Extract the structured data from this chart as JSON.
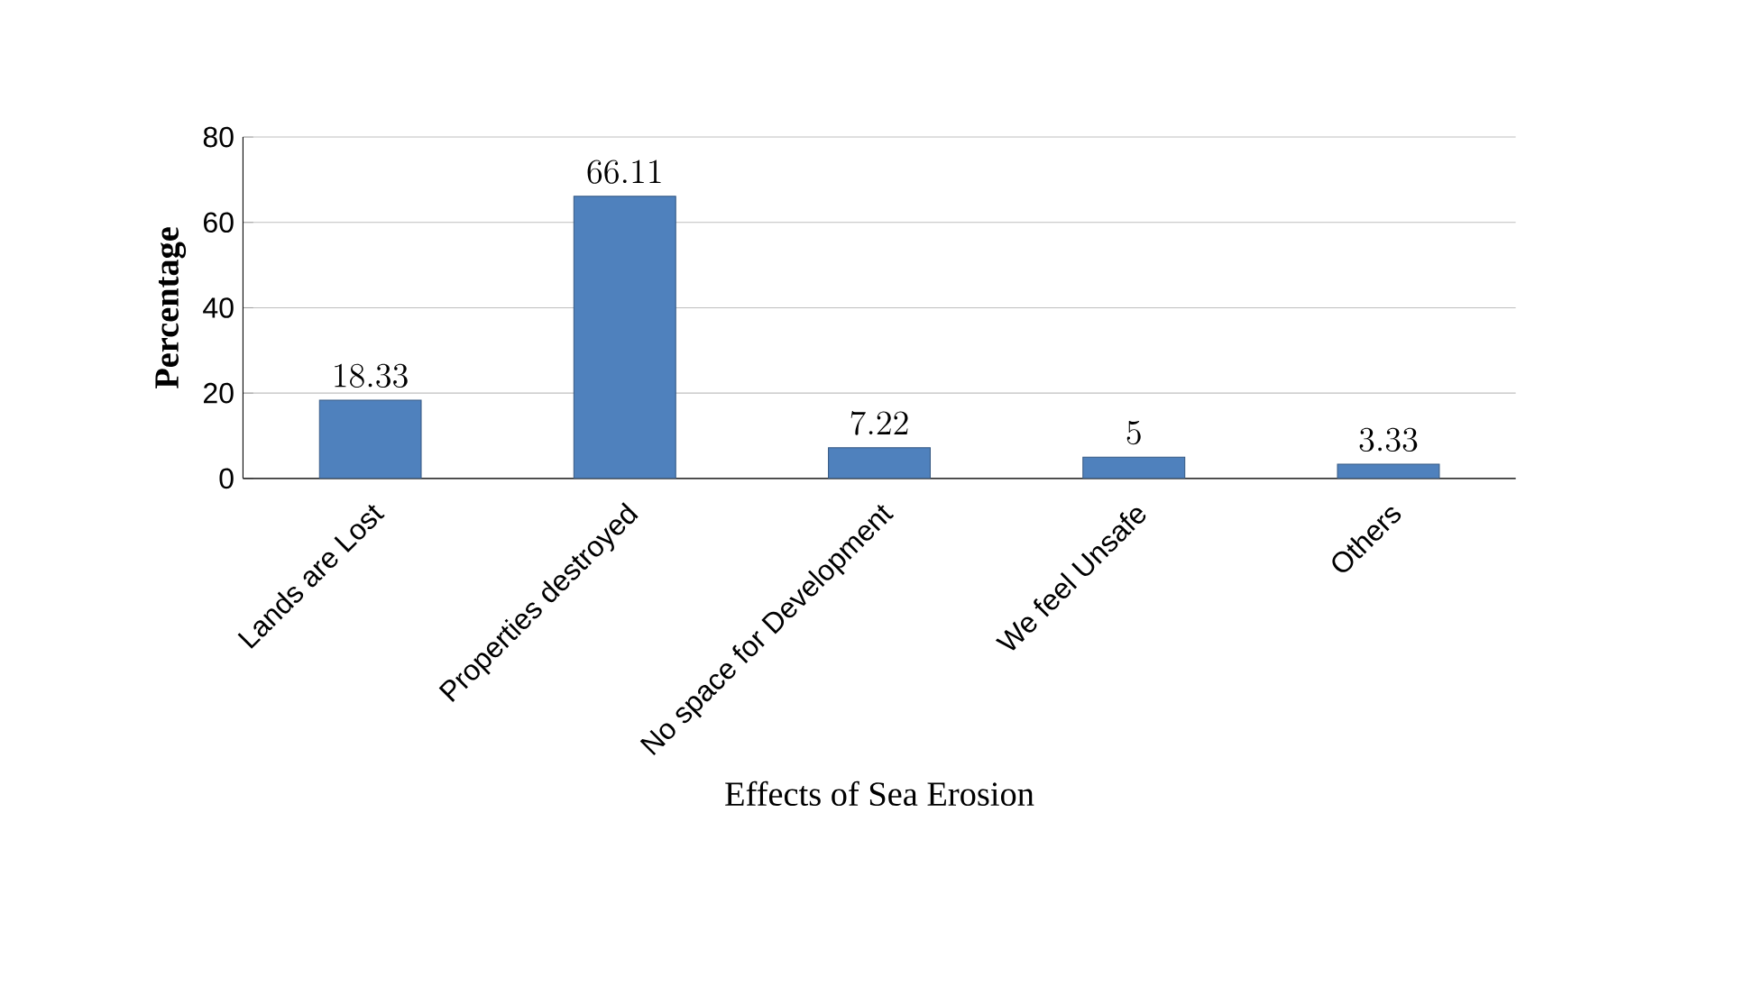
{
  "chart_data": {
    "type": "bar",
    "xlabel": "Effects of Sea Erosion",
    "ylabel": "Percentage",
    "categories": [
      "Lands are Lost",
      "Properties destroyed",
      "No space for Development",
      "We feel Unsafe",
      "Others"
    ],
    "values": [
      18.33,
      66.11,
      7.22,
      5,
      3.33
    ],
    "color": "#4f81bd",
    "ylim": [
      0,
      80
    ],
    "yticks": [
      0,
      20,
      40,
      60,
      80
    ],
    "grid": "y",
    "data_labels": true
  }
}
